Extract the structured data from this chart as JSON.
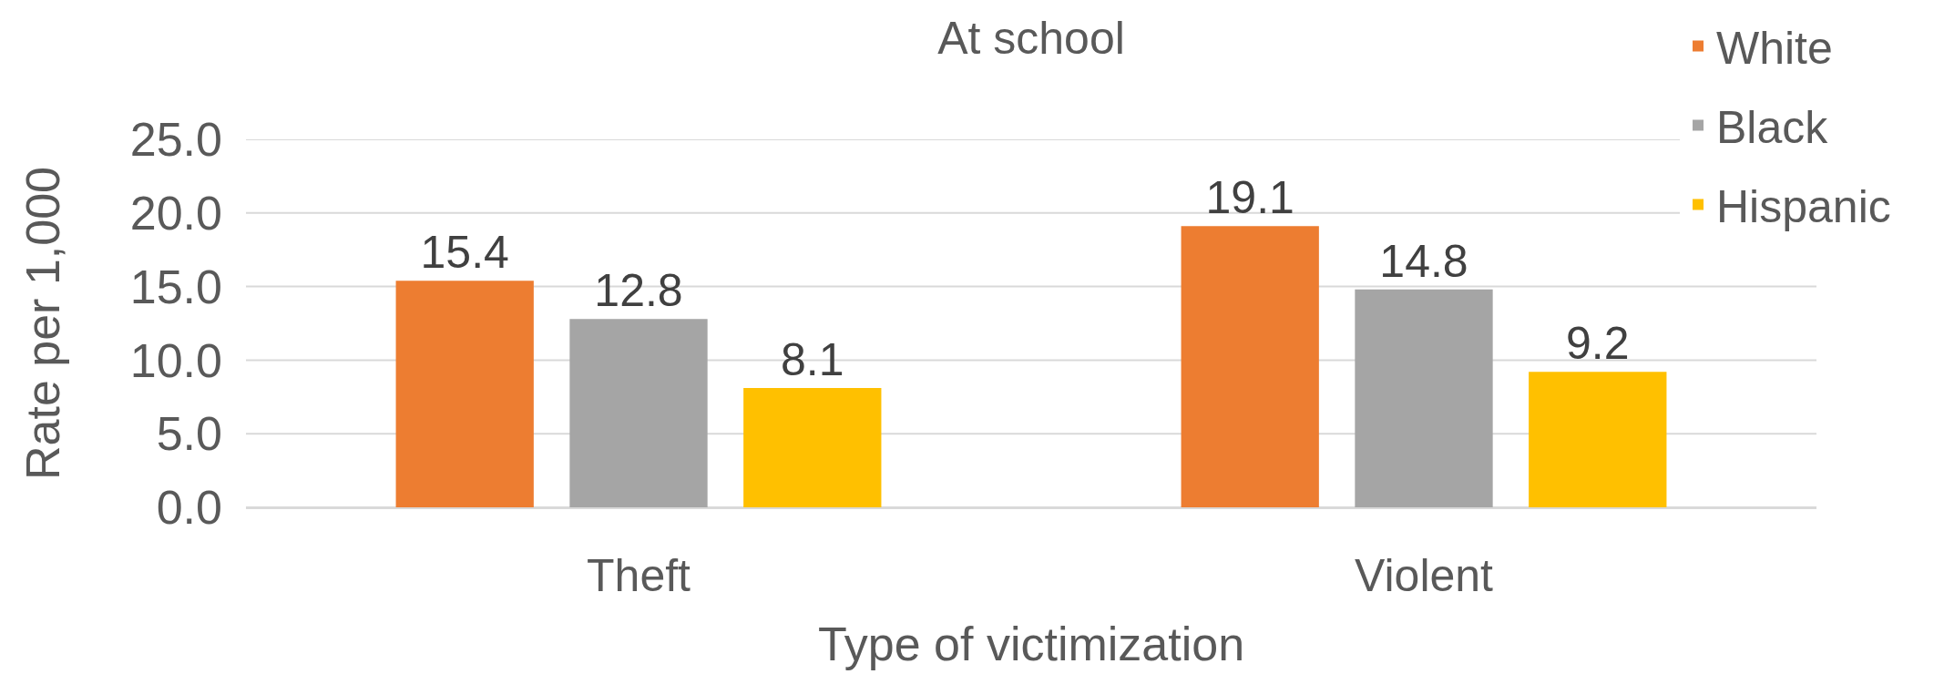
{
  "chart_data": {
    "type": "bar",
    "title": "At school",
    "xlabel": "Type of victimization",
    "ylabel": "Rate per 1,000",
    "categories": [
      "Theft",
      "Violent"
    ],
    "series": [
      {
        "name": "White",
        "color": "#ed7d31",
        "values": [
          15.4,
          19.1
        ]
      },
      {
        "name": "Black",
        "color": "#a5a5a5",
        "values": [
          12.8,
          14.8
        ]
      },
      {
        "name": "Hispanic",
        "color": "#ffc000",
        "values": [
          8.1,
          9.2
        ]
      }
    ],
    "ylim": [
      0,
      25
    ],
    "yticks": [
      {
        "value": 0,
        "label": "0.0"
      },
      {
        "value": 5,
        "label": "5.0"
      },
      {
        "value": 10,
        "label": "10.0"
      },
      {
        "value": 15,
        "label": "15.0"
      },
      {
        "value": 20,
        "label": "20.0"
      },
      {
        "value": 25,
        "label": "25.0"
      }
    ],
    "grid": "y",
    "legend": "top right",
    "data_labels": true
  }
}
